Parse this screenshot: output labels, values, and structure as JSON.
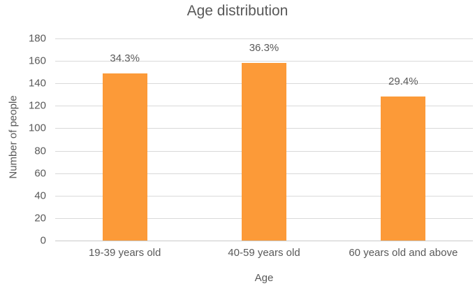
{
  "chart_data": {
    "type": "bar",
    "title": "Age distribution",
    "xlabel": "Age",
    "ylabel": "Number of people",
    "categories": [
      "19-39 years old",
      "40-59 years old",
      "60 years old and above"
    ],
    "values": [
      149,
      158,
      128
    ],
    "data_labels": [
      "34.3%",
      "36.3%",
      "29.4%"
    ],
    "ylim": [
      0,
      180
    ],
    "yticks": [
      0,
      20,
      40,
      60,
      80,
      100,
      120,
      140,
      160,
      180
    ],
    "grid": "horizontal",
    "legend": "none",
    "colors": {
      "bar": "#FC9A38",
      "text": "#595959",
      "gridline": "#D9D9D9",
      "axis_line": "#C9C9C9",
      "background": "#FFFFFF"
    }
  }
}
